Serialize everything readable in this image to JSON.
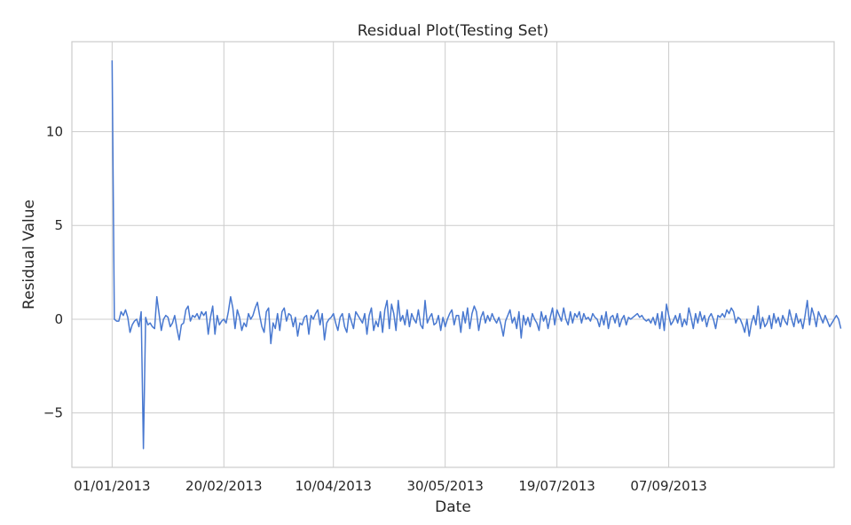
{
  "chart_data": {
    "type": "line",
    "title": "Residual Plot(Testing Set)",
    "xlabel": "Date",
    "ylabel": "Residual Value",
    "x_start": "2013-01-01",
    "x_step_days": 1,
    "xlim": [
      "2012-12-14",
      "2013-11-20"
    ],
    "ylim": [
      -7.9,
      14.8
    ],
    "x_ticks": [
      {
        "date": "2013-01-01",
        "label": "01/01/2013"
      },
      {
        "date": "2013-02-20",
        "label": "20/02/2013"
      },
      {
        "date": "2013-04-10",
        "label": "10/04/2013"
      },
      {
        "date": "2013-05-30",
        "label": "30/05/2013"
      },
      {
        "date": "2013-07-19",
        "label": "19/07/2013"
      },
      {
        "date": "2013-09-07",
        "label": "07/09/2013"
      }
    ],
    "y_ticks": [
      {
        "value": -5,
        "label": "−5"
      },
      {
        "value": 0,
        "label": "0"
      },
      {
        "value": 5,
        "label": "5"
      },
      {
        "value": 10,
        "label": "10"
      }
    ],
    "grid": true,
    "legend": "none",
    "series": [
      {
        "color": "#4878d0",
        "values": [
          13.8,
          0.0,
          -0.1,
          -0.1,
          0.4,
          0.2,
          0.5,
          0.1,
          -0.7,
          -0.3,
          -0.1,
          0.0,
          -0.4,
          0.4,
          -6.9,
          0.1,
          -0.3,
          -0.2,
          -0.4,
          -0.5,
          1.2,
          0.3,
          -0.6,
          0.0,
          0.2,
          0.1,
          -0.4,
          -0.2,
          0.2,
          -0.5,
          -1.1,
          -0.3,
          -0.2,
          0.5,
          0.7,
          -0.1,
          0.2,
          0.1,
          0.3,
          0.0,
          0.4,
          0.2,
          0.4,
          -0.8,
          0.1,
          0.7,
          -0.8,
          0.2,
          -0.3,
          -0.1,
          0.0,
          -0.2,
          0.4,
          1.2,
          0.6,
          -0.5,
          0.5,
          0.1,
          -0.6,
          -0.2,
          -0.4,
          0.3,
          0.0,
          0.2,
          0.6,
          0.9,
          0.2,
          -0.4,
          -0.7,
          0.4,
          0.6,
          -1.3,
          -0.2,
          -0.5,
          0.3,
          -0.6,
          0.4,
          0.6,
          -0.1,
          0.3,
          0.2,
          -0.4,
          0.1,
          -0.9,
          -0.2,
          -0.3,
          0.1,
          0.2,
          -0.8,
          0.2,
          0.0,
          0.3,
          0.5,
          -0.3,
          0.3,
          -1.1,
          -0.2,
          0.0,
          0.1,
          0.3,
          -0.2,
          -0.6,
          0.1,
          0.3,
          -0.4,
          -0.7,
          0.3,
          -0.1,
          -0.5,
          0.4,
          0.2,
          0.0,
          -0.2,
          0.3,
          -0.8,
          0.2,
          0.6,
          -0.6,
          -0.1,
          -0.4,
          0.4,
          -0.7,
          0.5,
          1.0,
          -0.5,
          0.8,
          0.3,
          -0.6,
          1.0,
          -0.1,
          0.2,
          -0.3,
          0.5,
          -0.4,
          0.3,
          0.0,
          -0.2,
          0.5,
          -0.3,
          -0.5,
          1.0,
          -0.2,
          0.1,
          0.3,
          -0.3,
          -0.2,
          0.2,
          -0.6,
          0.1,
          -0.4,
          0.0,
          0.3,
          0.5,
          -0.3,
          0.2,
          0.2,
          -0.7,
          0.4,
          -0.2,
          0.6,
          -0.5,
          0.3,
          0.7,
          0.4,
          -0.6,
          0.1,
          0.4,
          -0.2,
          0.2,
          -0.1,
          0.3,
          0.0,
          -0.2,
          0.1,
          -0.3,
          -0.9,
          -0.1,
          0.2,
          0.5,
          -0.2,
          0.1,
          -0.5,
          0.4,
          -1.0,
          0.2,
          -0.3,
          0.1,
          -0.4,
          0.3,
          0.0,
          -0.2,
          -0.6,
          0.4,
          -0.1,
          0.2,
          -0.5,
          0.1,
          0.6,
          -0.3,
          0.5,
          0.2,
          -0.1,
          0.6,
          0.0,
          -0.3,
          0.4,
          -0.2,
          0.3,
          0.1,
          0.4,
          -0.2,
          0.3,
          0.0,
          0.1,
          -0.1,
          0.3,
          0.1,
          0.0,
          -0.4,
          0.2,
          -0.3,
          0.4,
          -0.5,
          0.1,
          0.2,
          -0.2,
          0.3,
          -0.4,
          0.0,
          0.2,
          -0.3,
          0.1,
          0.0,
          0.1,
          0.2,
          0.3,
          0.1,
          0.2,
          0.0,
          -0.1,
          0.0,
          -0.2,
          0.1,
          -0.3,
          0.3,
          -0.5,
          0.4,
          -0.6,
          0.8,
          0.2,
          -0.3,
          -0.1,
          0.2,
          -0.2,
          0.3,
          -0.4,
          0.0,
          -0.3,
          0.6,
          0.1,
          -0.5,
          0.3,
          -0.2,
          0.4,
          -0.1,
          0.2,
          -0.4,
          0.1,
          0.3,
          0.0,
          -0.5,
          0.2,
          0.1,
          0.3,
          0.1,
          0.5,
          0.3,
          0.6,
          0.4,
          -0.2,
          0.1,
          0.0,
          -0.3,
          -0.7,
          0.0,
          -0.9,
          -0.2,
          0.2,
          -0.3,
          0.7,
          -0.5,
          0.1,
          -0.4,
          -0.2,
          0.2,
          -0.5,
          0.3,
          -0.2,
          0.1,
          -0.4,
          0.2,
          -0.1,
          -0.3,
          0.5,
          0.0,
          -0.4,
          0.3,
          -0.2,
          0.0,
          -0.5,
          0.2,
          1.0,
          -0.3,
          0.6,
          0.2,
          -0.4,
          0.4,
          0.1,
          -0.2,
          0.2,
          -0.1,
          -0.4,
          -0.2,
          0.0,
          0.2,
          0.0,
          -0.5
        ]
      }
    ]
  }
}
